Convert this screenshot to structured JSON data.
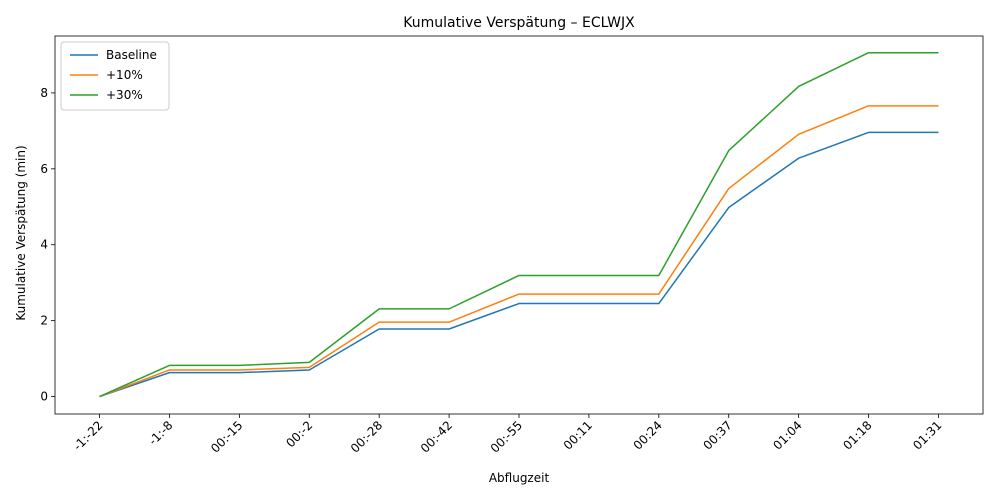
{
  "chart_data": {
    "type": "line",
    "title": "Kumulative Verspätung – ECLWJX",
    "xlabel": "Abflugzeit",
    "ylabel": "Kumulative Verspätung (min)",
    "categories": [
      "-1:-22",
      "-1:-8",
      "00:-15",
      "00:-2",
      "00:-28",
      "00:-42",
      "00:-55",
      "00:11",
      "00:24",
      "00:37",
      "01:04",
      "01:18",
      "01:31"
    ],
    "ylim": [
      -0.46,
      9.5
    ],
    "yticks": [
      0,
      2,
      4,
      6,
      8
    ],
    "grid": false,
    "legend_position": "top-left",
    "series": [
      {
        "name": "Baseline",
        "color": "#1f77b4",
        "values": [
          0,
          0.63,
          0.63,
          0.7,
          1.78,
          1.78,
          2.45,
          2.45,
          2.45,
          4.98,
          6.28,
          6.96,
          6.96
        ]
      },
      {
        "name": "+10%",
        "color": "#ff7f0e",
        "values": [
          0,
          0.7,
          0.7,
          0.77,
          1.96,
          1.96,
          2.7,
          2.7,
          2.7,
          5.48,
          6.91,
          7.66,
          7.66
        ]
      },
      {
        "name": "+30%",
        "color": "#2ca02c",
        "values": [
          0,
          0.82,
          0.82,
          0.9,
          2.31,
          2.31,
          3.19,
          3.19,
          3.19,
          6.48,
          8.17,
          9.06,
          9.06
        ]
      }
    ]
  }
}
